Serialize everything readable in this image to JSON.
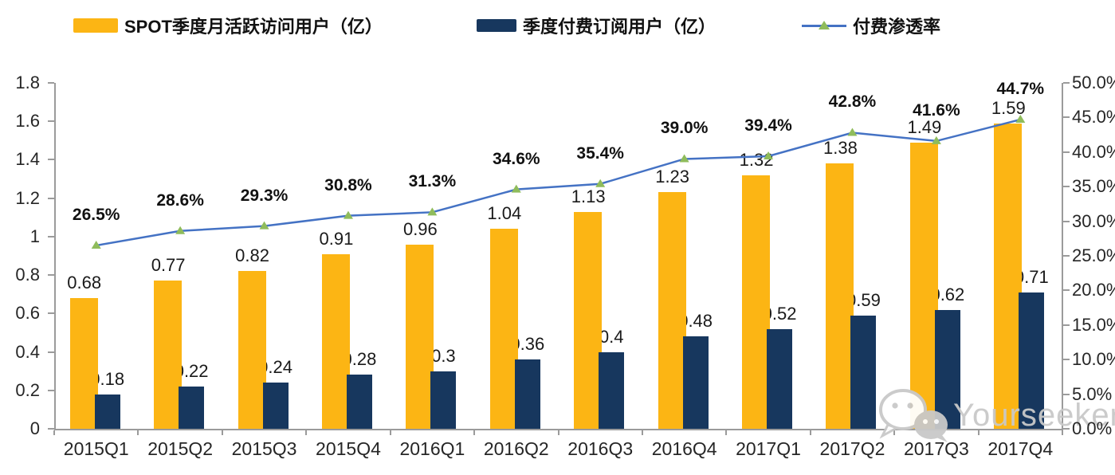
{
  "watermark": {
    "text": "Yourseeker",
    "icon": "wechat-icon"
  },
  "colors": {
    "mau_bar": "#FCB514",
    "subscriber_bar": "#17375E",
    "penetration_line": "#4472C4",
    "penetration_marker": "#8FBC5B",
    "axis": "#9B9B9B",
    "watermark": "#C9C9C9"
  },
  "chart_data": {
    "type": "bar+line",
    "title": "",
    "legend_position": "top",
    "grid": false,
    "categories": [
      "2015Q1",
      "2015Q2",
      "2015Q3",
      "2015Q4",
      "2016Q1",
      "2016Q2",
      "2016Q3",
      "2016Q4",
      "2017Q1",
      "2017Q2",
      "2017Q3",
      "2017Q4"
    ],
    "series": [
      {
        "name": "SPOT季度月活跃访问用户（亿）",
        "type": "bar",
        "axis": "left",
        "color": "#FCB514",
        "values": [
          0.68,
          0.77,
          0.82,
          0.91,
          0.96,
          1.04,
          1.13,
          1.23,
          1.32,
          1.38,
          1.49,
          1.59
        ],
        "labels": [
          "0.68",
          "0.77",
          "0.82",
          "0.91",
          "0.96",
          "1.04",
          "1.13",
          "1.23",
          "1.32",
          "1.38",
          "1.49",
          "1.59"
        ]
      },
      {
        "name": "季度付费订阅用户（亿）",
        "type": "bar",
        "axis": "left",
        "color": "#17375E",
        "values": [
          0.18,
          0.22,
          0.24,
          0.28,
          0.3,
          0.36,
          0.4,
          0.48,
          0.52,
          0.59,
          0.62,
          0.71
        ],
        "labels": [
          "0.18",
          "0.22",
          "0.24",
          "0.28",
          "0.3",
          "0.36",
          "0.4",
          "0.48",
          "0.52",
          "0.59",
          "0.62",
          "0.71"
        ]
      },
      {
        "name": "付费渗透率",
        "type": "line",
        "axis": "right",
        "color": "#4472C4",
        "marker": "triangle",
        "marker_color": "#8FBC5B",
        "values": [
          26.5,
          28.6,
          29.3,
          30.8,
          31.3,
          34.6,
          35.4,
          39.0,
          39.4,
          42.8,
          41.6,
          44.7
        ],
        "labels": [
          "26.5%",
          "28.6%",
          "29.3%",
          "30.8%",
          "31.3%",
          "34.6%",
          "35.4%",
          "39.0%",
          "39.4%",
          "42.8%",
          "41.6%",
          "44.7%"
        ]
      }
    ],
    "left_axis": {
      "min": 0,
      "max": 1.8,
      "ticks": [
        "1.8",
        "1.6",
        "1.4",
        "1.2",
        "1",
        "0.8",
        "0.6",
        "0.4",
        "0.2",
        "0"
      ]
    },
    "right_axis": {
      "min": 0,
      "max": 50,
      "ticks": [
        "50.0%",
        "45.0%",
        "40.0%",
        "35.0%",
        "30.0%",
        "25.0%",
        "20.0%",
        "15.0%",
        "10.0%",
        "5.0%",
        "0.0%"
      ]
    }
  }
}
